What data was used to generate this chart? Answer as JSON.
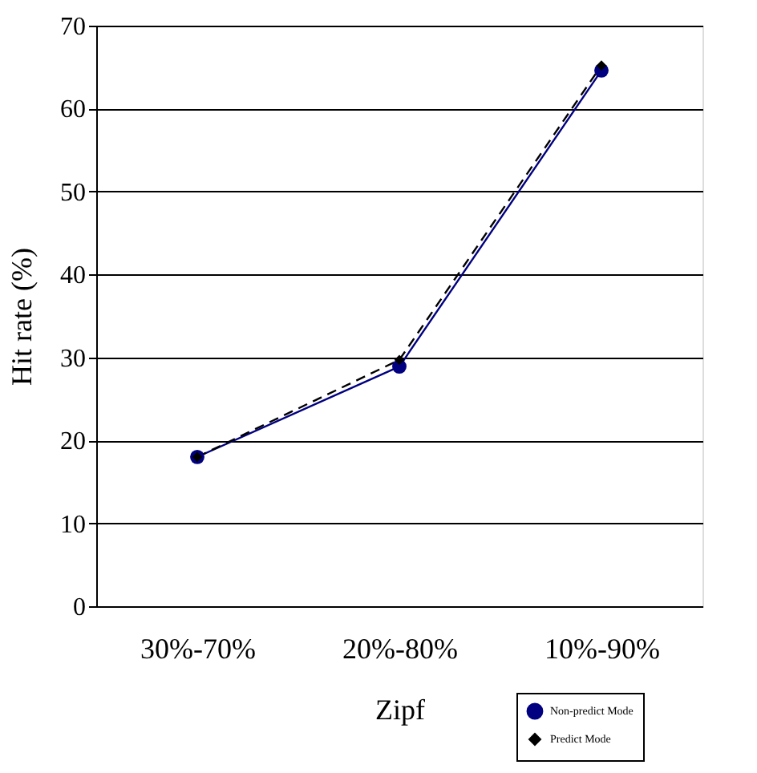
{
  "chart_data": {
    "type": "line",
    "xlabel": "Zipf",
    "ylabel": "Hit rate (%)",
    "categories": [
      "30%-70%",
      "20%-80%",
      "10%-90%"
    ],
    "series": [
      {
        "name": "Non-predict Mode",
        "color": "#000080",
        "values": [
          18,
          28.9,
          64.6
        ],
        "marker": "circle",
        "line_style": "solid"
      },
      {
        "name": "Predict Mode",
        "color": "#000000",
        "values": [
          18,
          29.7,
          65.2
        ],
        "marker": "diamond",
        "line_style": "dashed"
      }
    ],
    "ylim": [
      0,
      70
    ],
    "yticks": [
      0,
      10,
      20,
      30,
      40,
      50,
      60,
      70
    ],
    "grid": "y",
    "legend": "bottom right"
  }
}
